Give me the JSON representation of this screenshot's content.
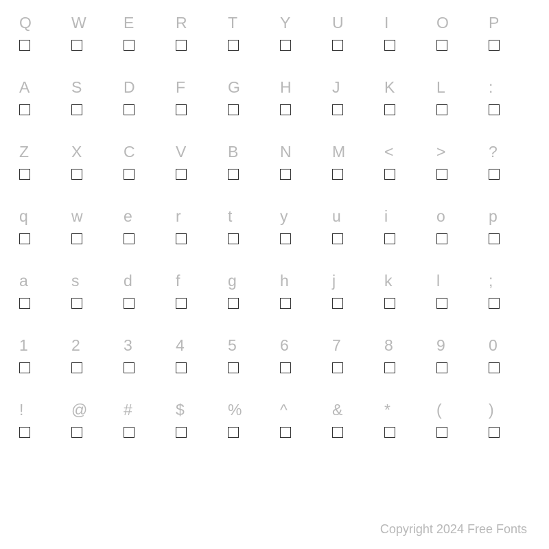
{
  "chart": {
    "type": "font-character-map",
    "columns": 10,
    "char_rows": [
      [
        "Q",
        "W",
        "E",
        "R",
        "T",
        "Y",
        "U",
        "I",
        "O",
        "P"
      ],
      [
        "A",
        "S",
        "D",
        "F",
        "G",
        "H",
        "J",
        "K",
        "L",
        ":"
      ],
      [
        "Z",
        "X",
        "C",
        "V",
        "B",
        "N",
        "M",
        "<",
        ">",
        "?"
      ],
      [
        "q",
        "w",
        "e",
        "r",
        "t",
        "y",
        "u",
        "i",
        "o",
        "p"
      ],
      [
        "a",
        "s",
        "d",
        "f",
        "g",
        "h",
        "j",
        "k",
        "l",
        ";"
      ],
      [
        "1",
        "2",
        "3",
        "4",
        "5",
        "6",
        "7",
        "8",
        "9",
        "0"
      ],
      [
        "!",
        "@",
        "#",
        "$",
        "%",
        "^",
        "&",
        "*",
        "(",
        ")"
      ]
    ],
    "char_color": "#b8b8b8",
    "char_fontsize": 23,
    "glyph_box_size": 16,
    "glyph_box_border_color": "#333333",
    "background_color": "#ffffff"
  },
  "copyright": "Copyright 2024 Free Fonts"
}
